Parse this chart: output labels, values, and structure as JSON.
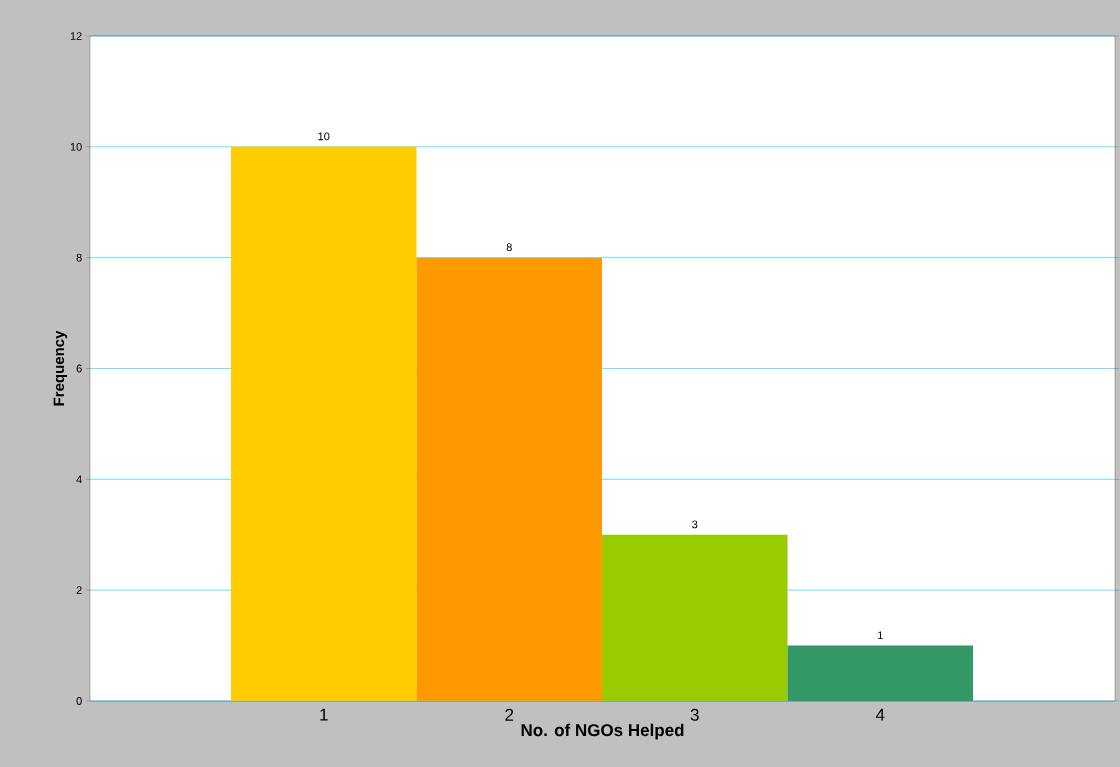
{
  "chart_data": {
    "type": "bar",
    "xlabel": "No. of NGOs Helped",
    "ylabel": "Frequency",
    "categories": [
      "1",
      "2",
      "3",
      "4"
    ],
    "values": [
      10,
      8,
      3,
      1
    ],
    "colors": [
      "#ffcc00",
      "#ff9900",
      "#99cc00",
      "#339966"
    ],
    "ylim": [
      0,
      12
    ],
    "yticks": [
      0,
      2,
      4,
      6,
      8,
      10,
      12
    ],
    "grid": "y",
    "data_labels": true
  }
}
